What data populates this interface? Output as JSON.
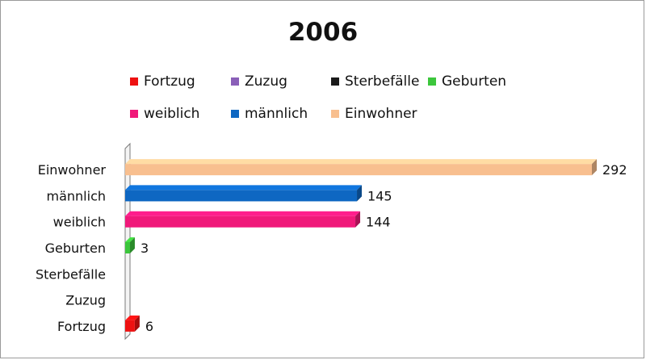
{
  "chart_data": {
    "type": "bar",
    "orientation": "horizontal",
    "title": "2006",
    "categories": [
      "Einwohner",
      "männlich",
      "weiblich",
      "Geburten",
      "Sterbefälle",
      "Zuzug",
      "Fortzug"
    ],
    "values": [
      292,
      145,
      144,
      3,
      0,
      0,
      6
    ],
    "value_labels": [
      "292",
      "145",
      "144",
      "3",
      "",
      "",
      "6"
    ],
    "colors": [
      "#f8bf8f",
      "#0e67c2",
      "#f0197a",
      "#3cc63c",
      "#1a1a1a",
      "#8a5fb8",
      "#ee1111"
    ],
    "xlim": [
      0,
      292
    ],
    "grid": false,
    "legend": {
      "placement": "top",
      "items": [
        {
          "label": "Fortzug",
          "color": "#ee1111"
        },
        {
          "label": "Zuzug",
          "color": "#8a5fb8"
        },
        {
          "label": "Sterbefälle",
          "color": "#1a1a1a"
        },
        {
          "label": "Geburten",
          "color": "#3cc63c"
        },
        {
          "label": "weiblich",
          "color": "#f0197a"
        },
        {
          "label": "männlich",
          "color": "#0e67c2"
        },
        {
          "label": "Einwohner",
          "color": "#f8bf8f"
        }
      ]
    }
  }
}
